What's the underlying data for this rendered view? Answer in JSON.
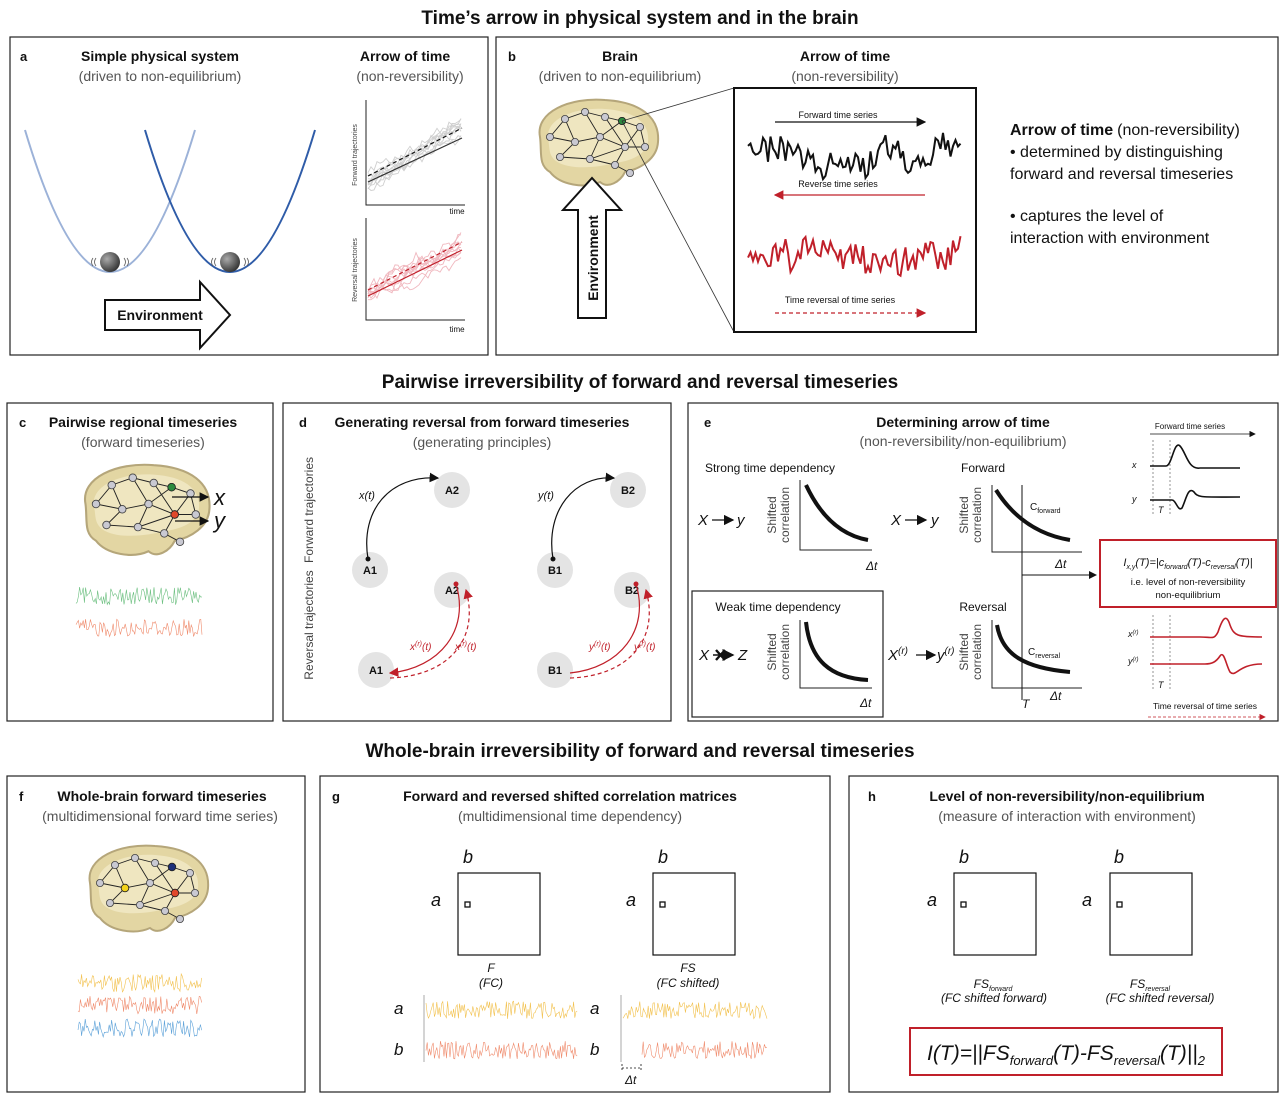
{
  "sections": {
    "top": "Time’s arrow in physical system and in the brain",
    "middle": "Pairwise irreversibility of forward and reversal timeseries",
    "bottom": "Whole-brain irreversibility of forward and reversal timeseries"
  },
  "panels": {
    "a": {
      "label": "a",
      "title": "Simple physical system",
      "subtitle": "(driven to non-equilibrium)",
      "arrow_title": "Arrow of time",
      "arrow_subtitle": "(non-reversibility)",
      "environment": "Environment",
      "forward_axis": "Forward trajectories",
      "forward_time": "time",
      "reversal_axis": "Reversal trajectories",
      "reversal_time": "time"
    },
    "b": {
      "label": "b",
      "title": "Brain",
      "subtitle": "(driven to non-equilibrium)",
      "arrow_title": "Arrow of time",
      "arrow_subtitle": "(non-reversibility)",
      "environment": "Environment",
      "forward_series": "Forward time series",
      "reverse_series": "Reverse time series",
      "time_reversal": "Time reversal of time series",
      "summary_title": "Arrow of time",
      "summary_subtitle": "(non-reversibility)",
      "summary_lines": [
        "• determined by distinguishing",
        "forward and reversal timeseries",
        "• captures the level of",
        "interaction with environment"
      ]
    },
    "c": {
      "label": "c",
      "title": "Pairwise regional timeseries",
      "subtitle": "(forward timeseries)",
      "x": "x",
      "y": "y"
    },
    "d": {
      "label": "d",
      "title": "Generating reversal from forward timeseries",
      "subtitle": "(generating principles)",
      "forward_axis": "Forward trajectories",
      "reversal_axis": "Reversal trajectories",
      "forward_nodes": [
        "A2",
        "A1",
        "B2",
        "B1"
      ],
      "forward_labels": [
        "x(t)",
        "y(t)"
      ],
      "reversal_nodes": [
        "A2",
        "A1",
        "B2",
        "B1"
      ],
      "reversal_labels": [
        {
          "base": "x",
          "sup": "(r)",
          "tail": "(t)"
        },
        {
          "base": "x",
          "sup": "(r)",
          "tail": "(t)"
        },
        {
          "base": "y",
          "sup": "(r)",
          "tail": "(t)"
        },
        {
          "base": "y",
          "sup": "(r)",
          "tail": "(t)"
        }
      ]
    },
    "e": {
      "label": "e",
      "title": "Determining arrow of time",
      "subtitle": "(non-reversibility/non-equilibrium)",
      "strong": {
        "heading": "Strong time dependency",
        "source": "X",
        "target": "y",
        "axis": [
          "Shifted",
          "correlation"
        ],
        "lag": "Δt"
      },
      "forward": {
        "heading": "Forward",
        "source": "X",
        "target": "y",
        "axis": [
          "Shifted",
          "correlation"
        ],
        "curve": {
          "base": "C",
          "sub": "forward"
        },
        "lag": "Δt"
      },
      "weak": {
        "heading": "Weak time dependency",
        "source": "X",
        "target": "Z",
        "axis": [
          "Shifted",
          "correlation"
        ],
        "lag": "Δt"
      },
      "reversal": {
        "heading": "Reversal",
        "source": {
          "base": "X",
          "sup": "(r)"
        },
        "target": {
          "base": "y",
          "sup": "(r)"
        },
        "axis": [
          "Shifted",
          "correlation"
        ],
        "curve": {
          "base": "C",
          "sub": "reversal"
        },
        "shift": "T",
        "lag": "Δt"
      },
      "example": {
        "forward_title": "Forward time series",
        "x": "x",
        "y": "y",
        "shift": "T",
        "reverse_x": {
          "base": "x",
          "sup": "(r)"
        },
        "reverse_y": {
          "base": "y",
          "sup": "(r)"
        },
        "reverse_shift": "T",
        "reverse_title": "Time reversal of time series"
      },
      "formula": {
        "parts": [
          "I",
          "x,y",
          "(T)=|c",
          "forward",
          "(T)-c",
          "reversal",
          "(T)|"
        ],
        "notes": [
          "i.e. level of non-reversibility",
          "non-equilibrium"
        ]
      }
    },
    "f": {
      "label": "f",
      "title": "Whole-brain forward timeseries",
      "subtitle": "(multidimensional forward time series)"
    },
    "g": {
      "label": "g",
      "title": "Forward and reversed shifted correlation matrices",
      "subtitle": "(multidimensional time dependency)",
      "matrices": [
        {
          "col": "b",
          "row": "a",
          "name": "F",
          "note": "(FC)"
        },
        {
          "col": "b",
          "row": "a",
          "name": "FS",
          "note": "(FC shifted)"
        }
      ],
      "traces": [
        [
          "a",
          "b"
        ],
        [
          "a",
          "b"
        ]
      ],
      "lag": "Δt"
    },
    "h": {
      "label": "h",
      "title": "Level of non-reversibility/non-equilibrium",
      "subtitle": "(measure of interaction with environment)",
      "matrices": [
        {
          "col": "b",
          "row": "a",
          "name": "FS",
          "sub": "forward",
          "note": "(FC shifted forward)"
        },
        {
          "col": "b",
          "row": "a",
          "name": "FS",
          "sub": "reversal",
          "note": "(FC shifted reversal)"
        }
      ],
      "formula": [
        "I(T)=||FS",
        "forward",
        "(T)-FS",
        "reversal",
        "(T)||",
        "2"
      ]
    }
  }
}
